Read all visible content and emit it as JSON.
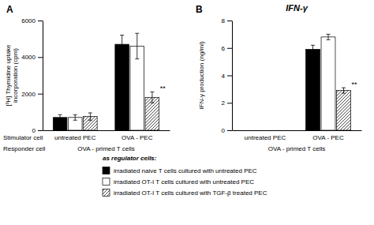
{
  "chart_data": [
    {
      "type": "bar",
      "label": "A",
      "ylabel": "[³H] Thymidine uptake incorporation (cpm)",
      "ylim": [
        0,
        6000
      ],
      "yticks": [
        0,
        2000,
        4000,
        6000
      ],
      "categories": [
        "untreated PEC",
        "OVA - PEC"
      ],
      "stimulator_label": "Stimulator cell",
      "responder_label": "Responder cell",
      "responder_text": "OVA - primed T cells",
      "legend_title": "as regulator cells:",
      "series": [
        {
          "name": "irradiated naive T cells cultured with untreated PEC",
          "color": "black",
          "values": [
            700,
            4700
          ],
          "errors": [
            150,
            500
          ]
        },
        {
          "name": "irradiated OT-I T cells cultured with untreated PEC",
          "color": "white",
          "values": [
            700,
            4600
          ],
          "errors": [
            150,
            700
          ]
        },
        {
          "name": "irradiated OT-I T cells cultured with TGF-β treated PEC",
          "color": "white",
          "values": [
            750,
            1800
          ],
          "errors": [
            200,
            300
          ]
        }
      ],
      "annotations": [
        {
          "text": "**",
          "category": 1,
          "series": 2
        }
      ]
    },
    {
      "type": "bar",
      "label": "B",
      "title": "IFN-γ",
      "ylabel": "IFN-γ production (ng/ml)",
      "ylim": [
        0,
        8
      ],
      "yticks": [
        0,
        2,
        4,
        6,
        8
      ],
      "categories": [
        "untreated PEC",
        "OVA - PEC"
      ],
      "responder_text": "OVA - primed T cells",
      "series": [
        {
          "color": "black",
          "values": [
            0,
            5.9
          ],
          "errors": [
            0,
            0.3
          ]
        },
        {
          "color": "white",
          "values": [
            0,
            6.8
          ],
          "errors": [
            0,
            0.2
          ]
        },
        {
          "color": "white",
          "values": [
            0,
            2.9
          ],
          "errors": [
            0,
            0.2
          ]
        }
      ],
      "annotations": [
        {
          "text": "**",
          "category": 1,
          "series": 2
        }
      ]
    }
  ]
}
